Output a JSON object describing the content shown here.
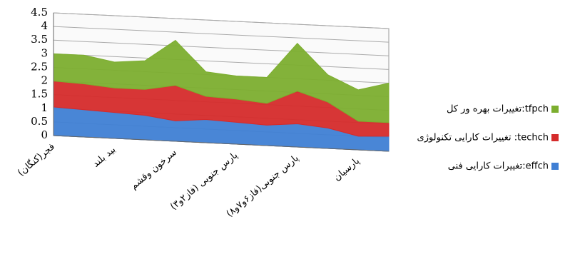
{
  "chart_data": {
    "type": "area",
    "categories": [
      "فجر(کنگان)",
      null,
      "بید بلند",
      null,
      "سرخون وقشم",
      null,
      "پارس جنوبی (فاز۲و۳)",
      null,
      "پارس جنوبی(فاز۶و۷و۸)",
      null,
      "پارسیان",
      null
    ],
    "stacked": true,
    "series": [
      {
        "name": "effch:تغییرات کارایی فنی",
        "color": "#3f7fd4",
        "values": [
          1.05,
          1.0,
          0.95,
          0.9,
          0.75,
          0.85,
          0.8,
          0.75,
          0.85,
          0.75,
          0.5,
          0.55
        ]
      },
      {
        "name": "techch: تغییرات کارایی تکنولوژی",
        "color": "#d52b2b",
        "values": [
          0.95,
          0.95,
          0.9,
          0.95,
          1.3,
          0.85,
          0.85,
          0.8,
          1.2,
          0.95,
          0.55,
          0.5
        ]
      },
      {
        "name": "tfpch:تغییرات بهره ور کل",
        "color": "#7cae2f",
        "values": [
          1.0,
          1.05,
          0.95,
          1.05,
          1.65,
          0.9,
          0.85,
          0.95,
          1.75,
          1.0,
          1.15,
          1.45
        ]
      }
    ],
    "ylim": [
      0,
      4.5
    ],
    "yticks": [
      0,
      0.5,
      1,
      1.5,
      2,
      2.5,
      3,
      3.5,
      4,
      4.5
    ],
    "grid": true,
    "legend": "right"
  }
}
